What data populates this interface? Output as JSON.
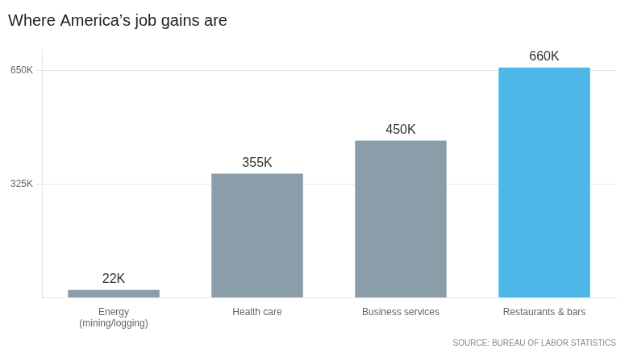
{
  "chart_data": {
    "type": "bar",
    "title": "Where America’s job gains are",
    "categories": [
      "Energy\n(mining/logging)",
      "Health care",
      "Business services",
      "Restaurants & bars"
    ],
    "values": [
      22000,
      355000,
      450000,
      660000
    ],
    "value_labels": [
      "22K",
      "355K",
      "450K",
      "660K"
    ],
    "data_labels": true,
    "colors": [
      "#8c9daa",
      "#8c9daa",
      "#8c9daa",
      "#4db8e8"
    ],
    "ylim": [
      0,
      710000
    ],
    "yticks": [
      {
        "value": 325000,
        "label": "325K"
      },
      {
        "value": 650000,
        "label": "650K"
      }
    ],
    "grid": true,
    "annotations": [
      "SOURCE: BUREAU OF LABOR STATISTICS"
    ]
  }
}
